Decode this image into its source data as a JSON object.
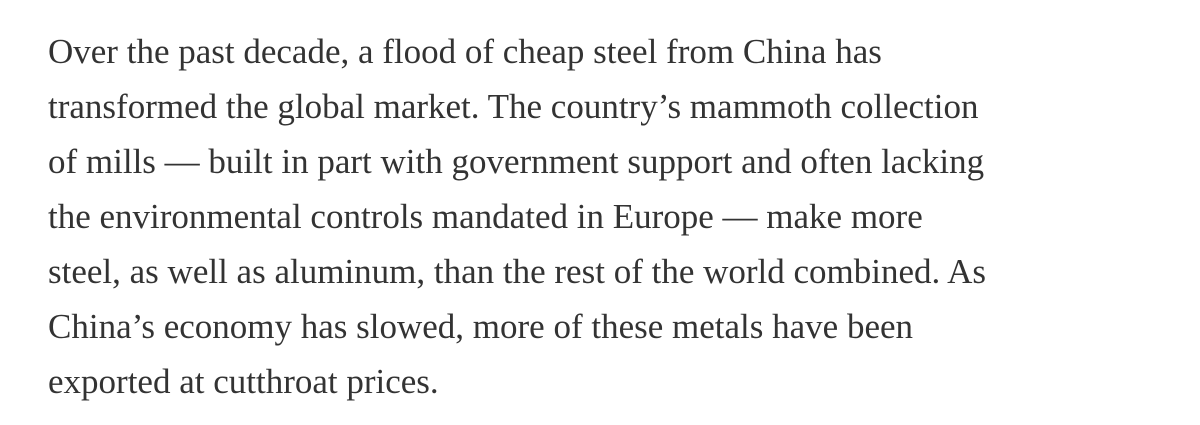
{
  "article": {
    "lines": [
      "Over the past decade, a flood of cheap steel from China has",
      "transformed the global market. The country’s mammoth collection",
      "of mills — built in part with government support and often lacking",
      "the environmental controls mandated in Europe — make more",
      "steel, as well as aluminum, than the rest of the world combined. As",
      "China’s economy has slowed, more of these metals have been",
      "exported at cutthroat prices."
    ]
  },
  "colors": {
    "text": "#333333",
    "background": "#ffffff"
  }
}
